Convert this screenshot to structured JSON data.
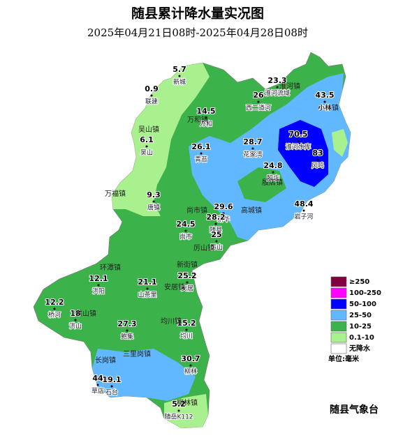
{
  "title": "随县累计降水量实况图",
  "subtitle": "2025年04月21日08时-2025年04月28日08时",
  "stations": [
    {
      "value": 5.7,
      "name": "新城"
    },
    {
      "value": 0.9,
      "name": "联建"
    },
    {
      "value": 14.5,
      "name": "万和"
    },
    {
      "value": 6.1,
      "name": "吴山"
    },
    {
      "value": 26.1,
      "name": "青苔"
    },
    {
      "value": 28.7,
      "name": "花家湾"
    },
    {
      "value": 70.5,
      "name": "淮河水库"
    },
    {
      "value": 83,
      "name": "风鸣"
    },
    {
      "value": 24.8,
      "name": "殷店"
    },
    {
      "value": 23.3,
      "name": "淮河流域"
    },
    {
      "value": 26,
      "name": "西二道河"
    },
    {
      "value": 43.5,
      "name": "小林"
    },
    {
      "value": 9.3,
      "name": "唐镇"
    },
    {
      "value": 29.6,
      "name": "新华"
    },
    {
      "value": 28.2,
      "name": "随县"
    },
    {
      "value": 25,
      "name": "厉山"
    },
    {
      "value": 24.5,
      "name": "尚市"
    },
    {
      "value": 48.4,
      "name": "岩子河"
    },
    {
      "value": 12.1,
      "name": "洪阳"
    },
    {
      "value": 21.1,
      "name": "山茶里"
    },
    {
      "value": 25.2,
      "name": "安居"
    },
    {
      "value": 12.2,
      "name": "桥河"
    },
    {
      "value": 18,
      "name": "洪山"
    },
    {
      "value": 27.3,
      "name": "鲍集"
    },
    {
      "value": 15.2,
      "name": "均川"
    },
    {
      "value": 30.7,
      "name": "柳林"
    },
    {
      "value": 44,
      "name": "草店"
    },
    {
      "value": 19.1,
      "name": "石台"
    },
    {
      "value": 5.2,
      "name": "随岳K112"
    }
  ],
  "towns": [
    "吴山镇",
    "万和镇",
    "万福镇",
    "尚市镇",
    "高城镇",
    "淮河镇",
    "环潭镇",
    "新街镇",
    "安居镇",
    "厉山镇",
    "均川镇",
    "三里岗镇",
    "长岗镇",
    "柳林镇",
    "洪山镇",
    "殷店镇",
    "小林镇"
  ],
  "legend": [
    {
      "label": "≥250",
      "color": "#800040"
    },
    {
      "label": "100-250",
      "color": "#ff00ff"
    },
    {
      "label": "50-100",
      "color": "#0000ff"
    },
    {
      "label": "25-50",
      "color": "#61b8ff"
    },
    {
      "label": "10-25",
      "color": "#3cb34a"
    },
    {
      "label": "0.1-10",
      "color": "#a9f08e"
    },
    {
      "label": "无降水",
      "color": "#ffffff"
    }
  ],
  "unit": "单位:毫米",
  "credit": "随县气象台"
}
